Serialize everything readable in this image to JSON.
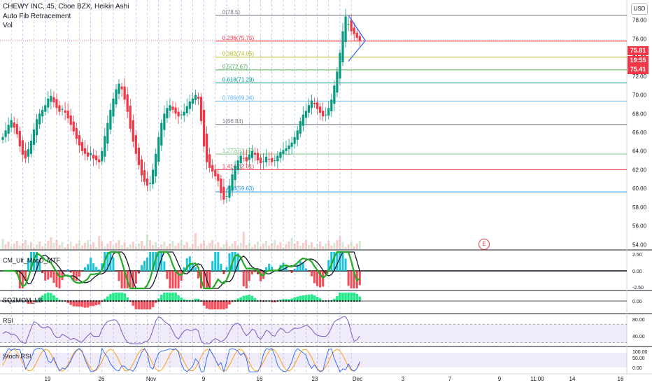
{
  "header": {
    "line1": "CHEWY INC, 45, Cboe BZX, Heikin Ashi",
    "line2": "Auto Fib Retracement",
    "line3": "Vol",
    "currency": "USD"
  },
  "price_badges": [
    {
      "label": "75.81",
      "color": "#f23645"
    },
    {
      "label": "19:55",
      "color": "#f23645"
    },
    {
      "label": "75.41",
      "color": "#f23645"
    }
  ],
  "earnings_marker": "E",
  "chart_data": {
    "type": "candlestick",
    "style": "Heikin Ashi",
    "price_axis": {
      "min": 53.5,
      "max": 80.0,
      "ticks": [
        54,
        56,
        58,
        60,
        62,
        64,
        66,
        68,
        70,
        72,
        74,
        76,
        78
      ]
    },
    "time_axis": {
      "labels": [
        "19",
        "26",
        "Nov",
        "9",
        "16",
        "23",
        "Dec",
        "3",
        "7",
        "9",
        "11:00",
        "14",
        "16"
      ]
    },
    "candle_count": 127,
    "closes_approx": [
      65.5,
      66.2,
      66.8,
      67.3,
      66.5,
      65.8,
      64.5,
      63.6,
      63.2,
      64.2,
      65.1,
      66.3,
      67.4,
      68.0,
      68.4,
      68.9,
      69.6,
      69.9,
      69.2,
      68.6,
      68.2,
      68.5,
      68.1,
      67.5,
      66.8,
      66.1,
      65.3,
      64.6,
      64.0,
      63.7,
      63.4,
      63.8,
      63.2,
      63.0,
      62.8,
      64.0,
      65.6,
      67.0,
      68.4,
      69.6,
      70.6,
      71.2,
      70.6,
      69.5,
      68.2,
      66.4,
      65.0,
      63.7,
      62.5,
      61.4,
      60.7,
      60.3,
      60.6,
      62.0,
      63.7,
      65.5,
      67.0,
      68.0,
      68.6,
      68.9,
      68.4,
      68.0,
      67.7,
      67.9,
      68.2,
      68.8,
      69.3,
      69.6,
      70.0,
      69.6,
      67.2,
      64.5,
      62.8,
      62.2,
      61.8,
      61.3,
      60.8,
      59.5,
      58.8,
      59.2,
      60.3,
      61.5,
      62.4,
      63.0,
      63.5,
      63.2,
      62.9,
      63.6,
      64.0,
      63.6,
      63.0,
      62.7,
      62.9,
      63.4,
      63.1,
      62.8,
      63.0,
      63.5,
      63.9,
      64.1,
      64.3,
      64.6,
      64.9,
      65.5,
      66.2,
      67.2,
      67.9,
      68.3,
      68.9,
      69.4,
      69.0,
      68.5,
      68.1,
      67.7,
      67.9,
      68.6,
      69.5,
      71.0,
      72.5,
      74.5,
      76.8,
      78.4,
      77.6,
      76.8,
      76.5,
      76.1,
      75.8
    ],
    "fib_levels": [
      {
        "ratio": "0",
        "price": 78.5,
        "label": "0(78.5)",
        "color": "#787b86"
      },
      {
        "ratio": "0.236",
        "price": 75.75,
        "label": "0.236(75.75)",
        "color": "#f23645"
      },
      {
        "ratio": "0.382",
        "price": 74.05,
        "label": "0.382(74.05)",
        "color": "#b5ba1c"
      },
      {
        "ratio": "0.5",
        "price": 72.67,
        "label": "0.5(72.67)",
        "color": "#4caf50"
      },
      {
        "ratio": "0.618",
        "price": 71.29,
        "label": "0.618(71.29)",
        "color": "#009688"
      },
      {
        "ratio": "0.786",
        "price": 69.34,
        "label": "0.786(69.34)",
        "color": "#64b5f6"
      },
      {
        "ratio": "1",
        "price": 66.84,
        "label": "1(66.84)",
        "color": "#787b86"
      },
      {
        "ratio": "1.272",
        "price": 63.67,
        "label": "1.272(63.67)",
        "color": "#81c784"
      },
      {
        "ratio": "1.414",
        "price": 62.01,
        "label": "1.414(62.01)",
        "color": "#f23645"
      },
      {
        "ratio": "1.618",
        "price": 59.63,
        "label": "1.618(59.63)",
        "color": "#2196f3"
      }
    ],
    "current_price": 75.81,
    "panes": [
      {
        "name": "CM_Ult_MacD_MTF",
        "ticks": [
          "2.50",
          "0.00",
          "-2.50"
        ]
      },
      {
        "name": "SQZMOM_LB",
        "ticks": [
          "0.00"
        ]
      },
      {
        "name": "RSI",
        "ticks": [
          "80.00",
          "40.00"
        ]
      },
      {
        "name": "Stoch RSI",
        "ticks": [
          "100.00",
          "50.00",
          "0.00"
        ]
      }
    ]
  }
}
